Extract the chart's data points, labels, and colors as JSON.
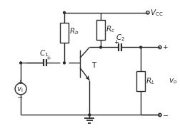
{
  "bg_color": "#ffffff",
  "line_color": "#2a2a2a",
  "lw": 1.0,
  "figsize": [
    2.53,
    1.84
  ],
  "dpi": 100,
  "xlim": [
    0,
    10
  ],
  "ylim": [
    0,
    7.5
  ],
  "labels": {
    "Rb": "$R_b$",
    "Rc": "$R_c$",
    "RL": "$R_L$",
    "C1": "$C_1$",
    "C2": "$C_2$",
    "T": "T",
    "vi": "$v_\\mathrm{i}$",
    "VCC": "$V_\\mathrm{CC}$",
    "vo": "$v_\\mathrm{o}$",
    "plus": "$+$",
    "minus": "$-$"
  }
}
